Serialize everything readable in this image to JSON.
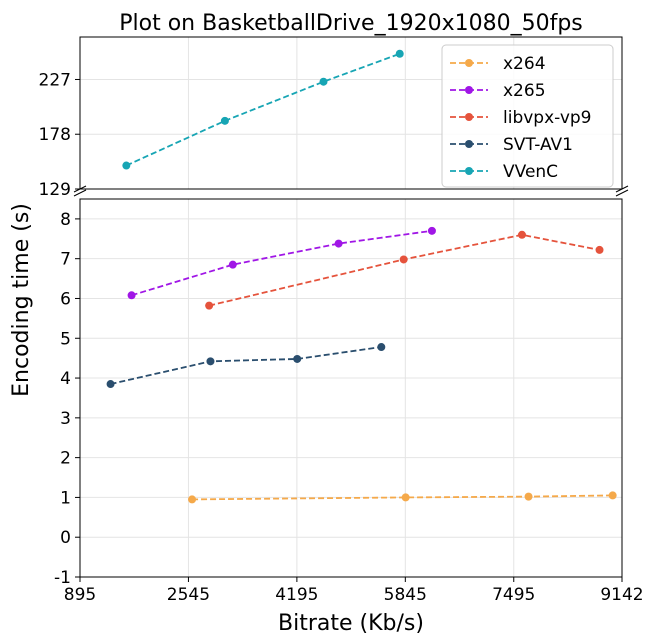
{
  "chart_data": {
    "type": "line",
    "title": "Plot on BasketballDrive_1920x1080_50fps",
    "xlabel": "Bitrate (Kb/s)",
    "ylabel": "Encoding time (s)",
    "xlim": [
      895,
      9142
    ],
    "x_ticks": [
      "895",
      "2545",
      "4195",
      "5845",
      "7495",
      "9142"
    ],
    "x_tick_values": [
      895,
      2545,
      4195,
      5845,
      7495,
      9142
    ],
    "grid": true,
    "legend_position": "top-right",
    "broken_y_axis": true,
    "panels": [
      {
        "name": "upper",
        "ylim": [
          129,
          265
        ],
        "y_ticks": [
          "129",
          "178",
          "227"
        ],
        "y_tick_values": [
          129,
          178,
          227
        ]
      },
      {
        "name": "lower",
        "ylim": [
          -1,
          8.5
        ],
        "y_ticks": [
          "-1",
          "0",
          "1",
          "2",
          "3",
          "4",
          "5",
          "6",
          "7",
          "8"
        ],
        "y_tick_values": [
          -1,
          0,
          1,
          2,
          3,
          4,
          5,
          6,
          7,
          8
        ]
      }
    ],
    "series": [
      {
        "name": "x264",
        "color": "#f5a94a",
        "panel": "lower",
        "x": [
          2600,
          5850,
          7720,
          9000
        ],
        "y": [
          0.95,
          1.0,
          1.02,
          1.05
        ]
      },
      {
        "name": "x265",
        "color": "#a016e6",
        "panel": "lower",
        "x": [
          1680,
          3220,
          4830,
          6250
        ],
        "y": [
          6.08,
          6.85,
          7.38,
          7.7
        ]
      },
      {
        "name": "libvpx-vp9",
        "color": "#e5533c",
        "panel": "lower",
        "x": [
          2860,
          5820,
          7620,
          8800
        ],
        "y": [
          5.82,
          6.98,
          7.6,
          7.22
        ]
      },
      {
        "name": "SVT-AV1",
        "color": "#2a4e6e",
        "panel": "lower",
        "x": [
          1360,
          2880,
          4200,
          5480
        ],
        "y": [
          3.85,
          4.42,
          4.48,
          4.78
        ]
      },
      {
        "name": "VVenC",
        "color": "#17a5b4",
        "panel": "upper",
        "x": [
          1600,
          3100,
          4600,
          5760
        ],
        "y": [
          150,
          190,
          225,
          250
        ]
      }
    ]
  }
}
